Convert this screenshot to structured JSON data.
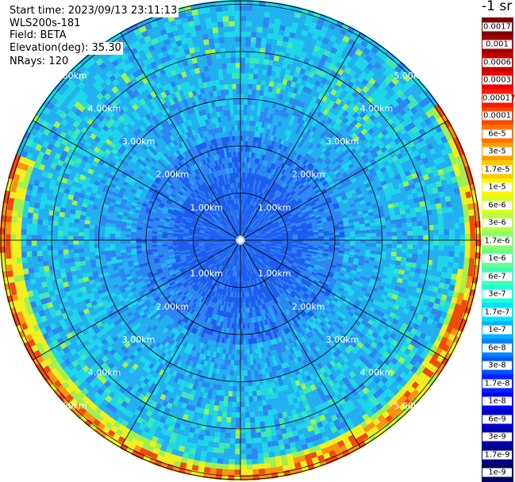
{
  "info": {
    "start_time": "Start time: 2023/09/13 23:11:13",
    "device": "WLS200s-181",
    "field": "Field: BETA",
    "elevation": "Elevation(deg): 35.30",
    "nrays": "NRays: 120"
  },
  "colorbar": {
    "unit": "-1 sr",
    "labels": [
      "0.0017",
      "0.001",
      "0.0006",
      "0.0003",
      "0.00017",
      "0.0001",
      "6e-5",
      "3e-5",
      "1.7e-5",
      "1e-5",
      "6e-6",
      "3e-6",
      "1.7e-6",
      "1e-6",
      "6e-7",
      "3e-7",
      "1.7e-7",
      "1e-7",
      "6e-8",
      "3e-8",
      "1.7e-8",
      "1e-8",
      "6e-9",
      "3e-9",
      "1.7e-9",
      "1e-9"
    ],
    "colors": [
      "#7f0000",
      "#a40000",
      "#c80000",
      "#ed0000",
      "#ff1a00",
      "#ff4600",
      "#ff7200",
      "#ff9e00",
      "#ffc900",
      "#fff500",
      "#d7ff1f",
      "#b1ff46",
      "#8aff6d",
      "#64ff93",
      "#3dffba",
      "#17ffe0",
      "#00e4ff",
      "#00b4ff",
      "#0084ff",
      "#0054ff",
      "#0024ff",
      "#0000f6",
      "#0000d1",
      "#0000ad",
      "#000088",
      "#000064"
    ]
  },
  "range_rings": {
    "labels": [
      "1.00km",
      "2.00km",
      "3.00km",
      "4.00km",
      "5.00km"
    ]
  },
  "ppi": {
    "max_range_km": 5.5,
    "n_rays": 120,
    "colors": {
      "deep_blue": "#1e5cf0",
      "blue": "#2e86f2",
      "light_blue": "#22b0f0",
      "cyan": "#1ed6e8",
      "aqua_green": "#40e8b0",
      "green_yellow": "#a0f050",
      "yellow": "#f0f020",
      "orange": "#ff9010",
      "red_orange": "#f04a10"
    }
  }
}
